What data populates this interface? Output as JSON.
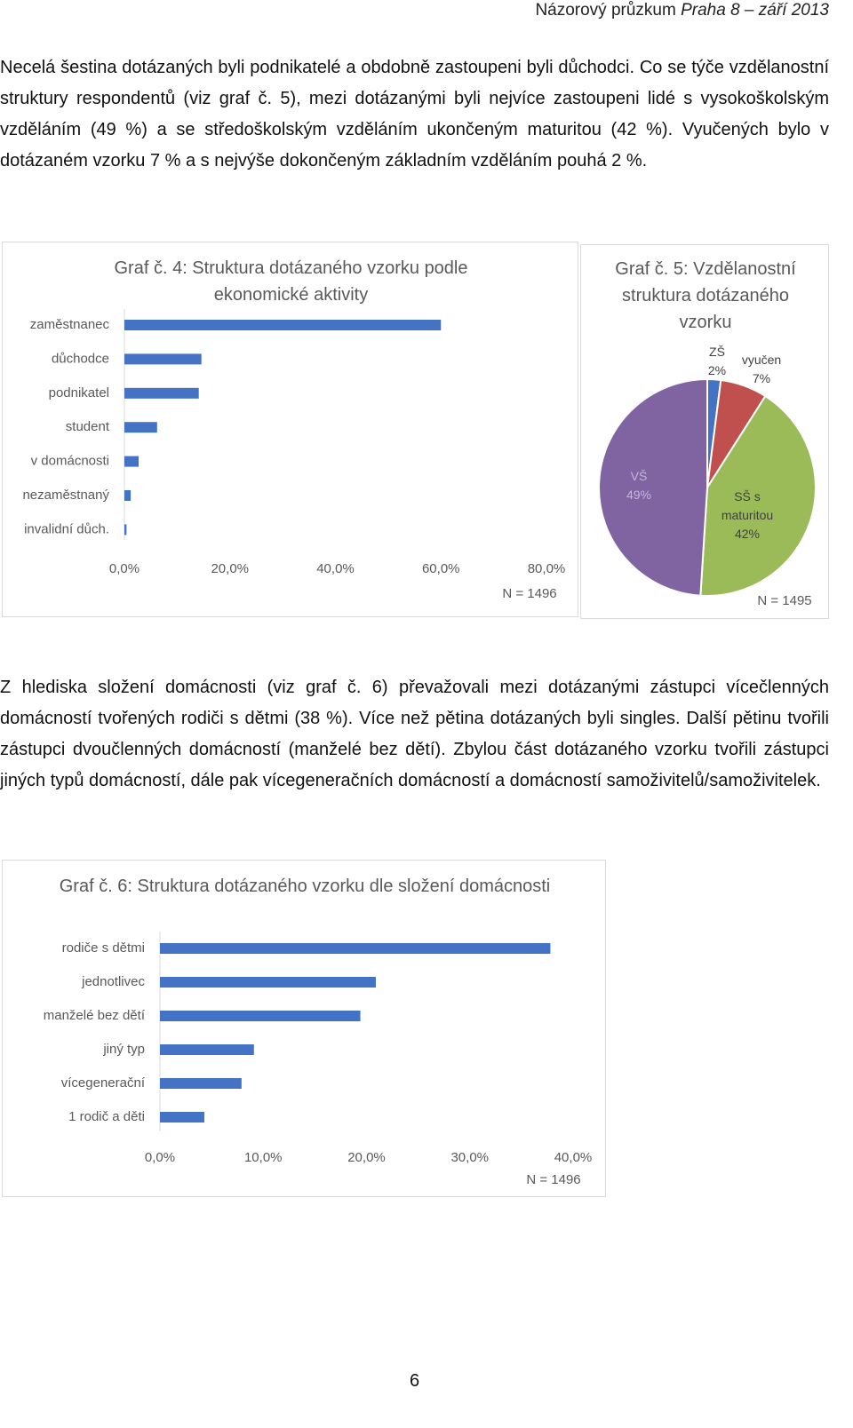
{
  "header": {
    "text": "Názorový průzkum",
    "italic": "Praha 8 – září 2013"
  },
  "paragraphs": [
    "Necelá šestina dotázaných byli podnikatelé a obdobně zastoupeni byli důchodci. Co se týče vzdělanostní struktury respondentů (viz graf č. 5), mezi dotázanými byli nejvíce zastoupeni lidé s vysokoškolským vzděláním (49 %) a se středoškolským vzděláním ukončeným maturitou (42 %). Vyučených bylo v dotázaném vzorku 7 % a s nejvýše dokončeným základním vzděláním pouhá 2 %.",
    "Z hlediska složení domácnosti (viz graf č. 6) převažovali mezi dotázanými zástupci vícečlenných domácností tvořených rodiči s dětmi (38 %). Více než pětina dotázaných byli singles. Další pětinu tvořili zástupci dvoučlenných domácností (manželé bez dětí). Zbylou část dotázaného vzorku tvořili zástupci jiných typů domácností, dále pak vícegeneračních domácností a domácností samoživitelů/samoživitelek."
  ],
  "chart_data": [
    {
      "type": "bar",
      "title": "Graf č. 4: Struktura dotázaného vzorku podle ekonomické aktivity",
      "categories": [
        "zaměstnanec",
        "důchodce",
        "podnikatel",
        "student",
        "v domácnosti",
        "nezaměstnaný",
        "invalidní důch."
      ],
      "values": [
        60,
        14.6,
        14.1,
        6.2,
        2.7,
        1.2,
        0.4
      ],
      "color": "#4472c4",
      "xlim": [
        0,
        80
      ],
      "xticks": [
        {
          "value": 0,
          "label": "0,0%"
        },
        {
          "value": 20,
          "label": "20,0%"
        },
        {
          "value": 40,
          "label": "40,0%"
        },
        {
          "value": 60,
          "label": "60,0%"
        },
        {
          "value": 80,
          "label": "80,0%"
        }
      ],
      "note": "N = 1496"
    },
    {
      "type": "pie",
      "title": "Graf č. 5: Vzdělanostní struktura dotázaného vzorku",
      "categories": [
        "ZŠ",
        "vyučen",
        "SŠ s maturitou",
        "VŠ"
      ],
      "values": [
        2,
        7,
        42,
        49
      ],
      "value_labels": [
        "2%",
        "7%",
        "42%",
        "49%"
      ],
      "colors": [
        "#4472c4",
        "#c0504d",
        "#9bbb59",
        "#8064a2"
      ],
      "note": "N = 1495"
    },
    {
      "type": "bar",
      "title": "Graf č. 6: Struktura dotázaného vzorku dle složení domácnosti",
      "categories": [
        "rodiče s dětmi",
        "jednotlivec",
        "manželé bez dětí",
        "jiný typ",
        "vícegenerační",
        "1 rodič a děti"
      ],
      "values": [
        37.8,
        20.9,
        19.4,
        9.1,
        7.9,
        4.3
      ],
      "color": "#4472c4",
      "xlim": [
        0,
        40
      ],
      "xticks": [
        {
          "value": 0,
          "label": "0,0%"
        },
        {
          "value": 10,
          "label": "10,0%"
        },
        {
          "value": 20,
          "label": "20,0%"
        },
        {
          "value": 30,
          "label": "30,0%"
        },
        {
          "value": 40,
          "label": "40,0%"
        }
      ],
      "note": "N = 1496"
    }
  ],
  "page_number": 6
}
